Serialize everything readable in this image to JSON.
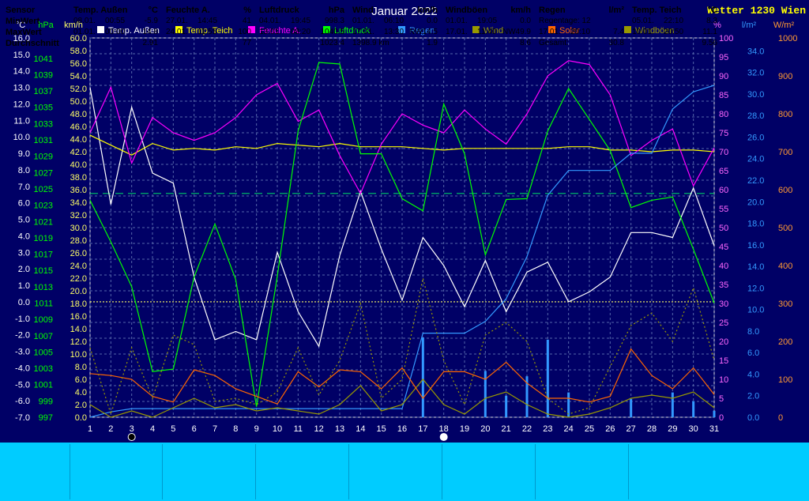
{
  "title": "Januar 2022",
  "station": "Wetter 1230 Wien",
  "axes": {
    "temp": {
      "unit": "°C",
      "ticks": [
        "16.0",
        "15.0",
        "14.0",
        "13.0",
        "12.0",
        "11.0",
        "10.0",
        "9.0",
        "8.0",
        "7.0",
        "6.0",
        "5.0",
        "4.0",
        "3.0",
        "2.0",
        "1.0",
        "0.0",
        "-1.0",
        "-2.0",
        "-3.0",
        "-4.0",
        "-5.0",
        "-6.0",
        "-7.0"
      ],
      "range": [
        -7,
        16
      ],
      "color": "#ffffff"
    },
    "press": {
      "unit": "hPa",
      "ticks": [
        "1041",
        "1039",
        "1037",
        "1035",
        "1033",
        "1031",
        "1029",
        "1027",
        "1025",
        "1023",
        "1021",
        "1019",
        "1017",
        "1015",
        "1013",
        "1011",
        "1009",
        "1007",
        "1005",
        "1003",
        "1001",
        "999",
        "997"
      ],
      "range": [
        997,
        1043.5
      ],
      "color": "#00ff00"
    },
    "wind": {
      "unit": "km/h",
      "ticks": [
        "60.0",
        "58.0",
        "56.0",
        "54.0",
        "52.0",
        "50.0",
        "48.0",
        "46.0",
        "44.0",
        "42.0",
        "40.0",
        "38.0",
        "36.0",
        "34.0",
        "32.0",
        "30.0",
        "28.0",
        "26.0",
        "24.0",
        "22.0",
        "20.0",
        "18.0",
        "16.0",
        "14.0",
        "12.0",
        "10.0",
        "8.0",
        "6.0",
        "4.0",
        "2.0",
        "0.0"
      ],
      "range": [
        0,
        60
      ],
      "color": "#ffff66"
    },
    "hum": {
      "unit": "%",
      "ticks": [
        "100",
        "95",
        "90",
        "85",
        "80",
        "75",
        "70",
        "65",
        "60",
        "55",
        "50",
        "45",
        "40",
        "35",
        "30",
        "25",
        "20",
        "15",
        "10",
        "5",
        "0"
      ],
      "range": [
        0,
        100
      ],
      "color": "#ff66ff"
    },
    "rain": {
      "unit": "l/m²",
      "ticks": [
        "34.0",
        "32.0",
        "30.0",
        "28.0",
        "26.0",
        "24.0",
        "22.0",
        "20.0",
        "18.0",
        "16.0",
        "14.0",
        "12.0",
        "10.0",
        "8.0",
        "6.0",
        "4.0",
        "2.0",
        "0.0"
      ],
      "range": [
        0,
        35.2
      ],
      "color": "#3399ff"
    },
    "solar": {
      "unit": "W/m²",
      "ticks": [
        "1000",
        "900",
        "800",
        "700",
        "600",
        "500",
        "400",
        "300",
        "200",
        "100",
        "0"
      ],
      "range": [
        0,
        1000
      ],
      "color": "#ff9933"
    }
  },
  "x_ticks": [
    "1",
    "2",
    "3",
    "4",
    "5",
    "6",
    "7",
    "8",
    "9",
    "10",
    "11",
    "12",
    "13",
    "14",
    "15",
    "16",
    "17",
    "18",
    "19",
    "20",
    "21",
    "22",
    "23",
    "24",
    "25",
    "26",
    "27",
    "28",
    "29",
    "30",
    "31"
  ],
  "colors": {
    "bg": "#000066",
    "grid": "#5566aa",
    "axis": "#dddddd"
  },
  "chart_data": {
    "type": "line",
    "x": [
      1,
      2,
      3,
      4,
      5,
      6,
      7,
      8,
      9,
      10,
      11,
      12,
      13,
      14,
      15,
      16,
      17,
      18,
      19,
      20,
      21,
      22,
      23,
      24,
      25,
      26,
      27,
      28,
      29,
      30,
      31
    ],
    "series": [
      {
        "name": "Temp. Außen",
        "axis": "temp",
        "color": "#ffffff",
        "values": [
          13.0,
          5.9,
          11.8,
          7.8,
          7.2,
          1.5,
          -2.3,
          -1.8,
          -2.3,
          3.0,
          -0.6,
          -2.7,
          2.8,
          6.7,
          3.2,
          0.1,
          3.9,
          2.2,
          -0.3,
          2.5,
          -0.6,
          1.8,
          2.4,
          0.0,
          0.6,
          1.5,
          4.2,
          4.2,
          3.9,
          6.9,
          3.4
        ]
      },
      {
        "name": "Temp. Teich",
        "axis": "temp",
        "color": "#ffff00",
        "values": [
          10.1,
          9.5,
          8.9,
          9.6,
          9.2,
          9.3,
          9.2,
          9.4,
          9.3,
          9.6,
          9.5,
          9.4,
          9.6,
          9.4,
          9.4,
          9.4,
          9.3,
          9.2,
          9.3,
          9.3,
          9.3,
          9.3,
          9.3,
          9.4,
          9.4,
          9.2,
          9.2,
          9.1,
          9.2,
          9.2,
          9.1
        ]
      },
      {
        "name": "Feuchte A.",
        "axis": "hum",
        "color": "#ff00ff",
        "values": [
          75,
          87,
          67,
          79,
          75,
          73,
          75,
          79,
          85,
          88,
          78,
          81,
          69,
          59,
          72,
          80,
          77,
          75,
          81,
          76,
          72,
          80,
          90,
          94,
          93,
          85,
          69,
          73,
          76,
          61,
          71
        ]
      },
      {
        "name": "Luftdruck",
        "axis": "press",
        "color": "#00ff00",
        "values": [
          1023.6,
          1018.5,
          1013.0,
          1002.6,
          1002.9,
          1014.2,
          1020.7,
          1013.9,
          998.3,
          1014.3,
          1032.1,
          1040.5,
          1040.3,
          1029.3,
          1029.3,
          1023.8,
          1022.3,
          1035.4,
          1029.3,
          1016.9,
          1023.7,
          1023.8,
          1032.1,
          1037.3,
          1033.5,
          1029.7,
          1022.7,
          1023.6,
          1024.0,
          1017.6,
          1011.0
        ]
      },
      {
        "name": "Regen",
        "axis": "rain",
        "color": "#3399ff",
        "values": [
          0.0,
          0.5,
          0.8,
          0.8,
          0.8,
          0.8,
          0.8,
          0.8,
          0.8,
          0.8,
          0.8,
          0.8,
          0.8,
          0.8,
          0.8,
          0.8,
          7.8,
          7.8,
          7.8,
          8.9,
          11.0,
          14.9,
          20.6,
          22.9,
          22.9,
          22.9,
          24.5,
          24.5,
          28.6,
          30.2,
          30.8
        ]
      },
      {
        "name": "Wind",
        "axis": "wind",
        "color": "#999900",
        "values": [
          2.0,
          0.0,
          1.0,
          0.0,
          1.5,
          3.0,
          1.5,
          2.0,
          1.0,
          1.5,
          1.0,
          0.5,
          2.0,
          5.0,
          1.0,
          2.0,
          6.0,
          2.0,
          0.5,
          3.0,
          4.0,
          2.0,
          0.5,
          0.0,
          0.5,
          1.5,
          3.0,
          3.5,
          3.0,
          4.0,
          1.5
        ]
      },
      {
        "name": "Solar",
        "axis": "solar",
        "color": "#ff6600",
        "values": [
          115,
          110,
          100,
          55,
          40,
          125,
          110,
          75,
          55,
          35,
          120,
          80,
          125,
          120,
          75,
          130,
          50,
          120,
          120,
          100,
          145,
          90,
          50,
          50,
          40,
          55,
          180,
          110,
          75,
          130,
          60
        ]
      },
      {
        "name": "Windböen",
        "axis": "wind",
        "color": "#999900",
        "style": "dashed",
        "values": [
          11.0,
          0.5,
          11.0,
          3.0,
          13.0,
          11.5,
          2.5,
          3.0,
          2.0,
          4.0,
          11.0,
          3.5,
          9.0,
          18.0,
          3.0,
          6.0,
          22.0,
          9.0,
          2.0,
          13.0,
          15.0,
          12.0,
          3.0,
          0.5,
          1.5,
          8.0,
          14.5,
          16.5,
          12.0,
          20.5,
          9.0
        ]
      }
    ],
    "rain_daily": [
      0,
      0,
      0,
      0,
      0,
      0,
      0,
      0,
      0,
      0,
      0,
      0,
      0,
      0,
      0,
      0,
      7.4,
      0,
      0,
      4.3,
      2.0,
      3.8,
      7.2,
      2.3,
      0,
      0,
      1.7,
      0,
      2.3,
      1.5,
      0.6
    ],
    "dashed_horizontal": [
      {
        "axis": "hum",
        "value": 59,
        "color": "#00cc66"
      },
      {
        "axis": "temp",
        "value": 0.0,
        "color": "#ffff66",
        "style": "dotted"
      }
    ],
    "moon_markers": [
      {
        "x": 3,
        "phase": "new"
      },
      {
        "x": 18,
        "phase": "full"
      }
    ]
  },
  "footer": {
    "sensor": {
      "header": "Sensor",
      "rows": [
        "MinWert",
        "MaxWert",
        "Durchschnitt"
      ]
    },
    "temp_aussen": {
      "header": "Temp. Außen",
      "unit": "°C",
      "min_date": "08.01.",
      "min_time": "00:55",
      "min_val": "-5.9",
      "max_date": "01.01.",
      "max_time": "00:00",
      "max_val": "14.8",
      "avg": "2.91"
    },
    "feuchte": {
      "header": "Feuchte A.",
      "unit": "%",
      "min_date": "27.01.",
      "min_time": "14:45",
      "min_val": "41",
      "max_date": "24.01.",
      "max_time": "11:55",
      "max_val": "100",
      "avg": "77"
    },
    "luftdruck": {
      "header": "Luftdruck",
      "unit": "hPa",
      "min_date": "04.01.",
      "min_time": "19:45",
      "min_val": "998.3",
      "max_date": "13.01.",
      "max_time": "08:20",
      "max_val": "1040.5",
      "avg": "1023.4"
    },
    "wind": {
      "header": "Wind",
      "unit": "km/h",
      "min_date": "01.01.",
      "min_time": "06:10",
      "min_val": "0.0",
      "max_date": "17.01.",
      "max_time": "13:30",
      "max_dir": "NW",
      "max_val": "14.5",
      "avg_label": "1398.9 km",
      "avg": "1.9"
    },
    "windboeen": {
      "header": "Windböen",
      "unit": "km/h",
      "min_date": "01.01.",
      "min_time": "19:05",
      "min_val": "0.0",
      "max_date": "17.01.",
      "max_time": "11:40",
      "max_dir": "NW",
      "max_val": "49.9",
      "avg": "8.6"
    },
    "regen": {
      "header": "Regen",
      "unit": "l/m²",
      "tage_label": "Regentage: 12",
      "max_date": "17.01.",
      "max_time": "20:10",
      "max_val": "7.4",
      "gesamt_label": "Gesamt:",
      "gesamt": "30.8"
    },
    "temp_teich": {
      "header": "Temp. Teich",
      "unit": "°C",
      "min_date": "05.01.",
      "min_time": "22:10",
      "min_val": "8.3",
      "max_date": "10.01.",
      "max_time": "20:50",
      "max_val": "11.1",
      "avg": "9.56"
    }
  }
}
